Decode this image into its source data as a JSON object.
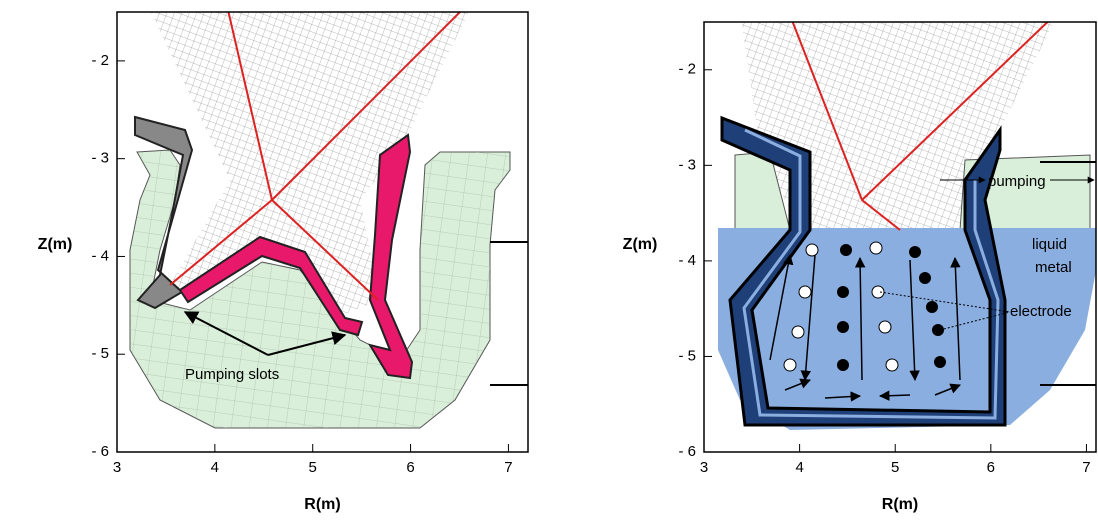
{
  "panels": [
    {
      "xlabel": "R(m)",
      "ylabel": "Z(m)",
      "xlim": [
        3,
        7.2
      ],
      "ylim": [
        -6,
        -1.5
      ],
      "xticks": [
        3,
        4,
        5,
        6,
        7
      ],
      "yticks": [
        {
          "value": -2,
          "label": "- 2"
        },
        {
          "value": -3,
          "label": "- 3"
        },
        {
          "value": -4,
          "label": "- 4"
        },
        {
          "value": -5,
          "label": "- 5"
        },
        {
          "value": -6,
          "label": "- 6"
        }
      ],
      "annotations": [
        "Pumping slots"
      ]
    },
    {
      "xlabel": "R(m)",
      "ylabel": "Z(m)",
      "xlim": [
        3,
        7.1
      ],
      "ylim": [
        -6,
        -1.5
      ],
      "xticks": [
        3,
        4,
        5,
        6,
        7
      ],
      "yticks": [
        {
          "value": -2,
          "label": "- 2"
        },
        {
          "value": -3,
          "label": "- 3"
        },
        {
          "value": -4,
          "label": "- 4"
        },
        {
          "value": -5,
          "label": "- 5"
        },
        {
          "value": -6,
          "label": "- 6"
        }
      ],
      "annotations": [
        "pumping",
        "liquid",
        "metal",
        "electrode"
      ]
    }
  ]
}
